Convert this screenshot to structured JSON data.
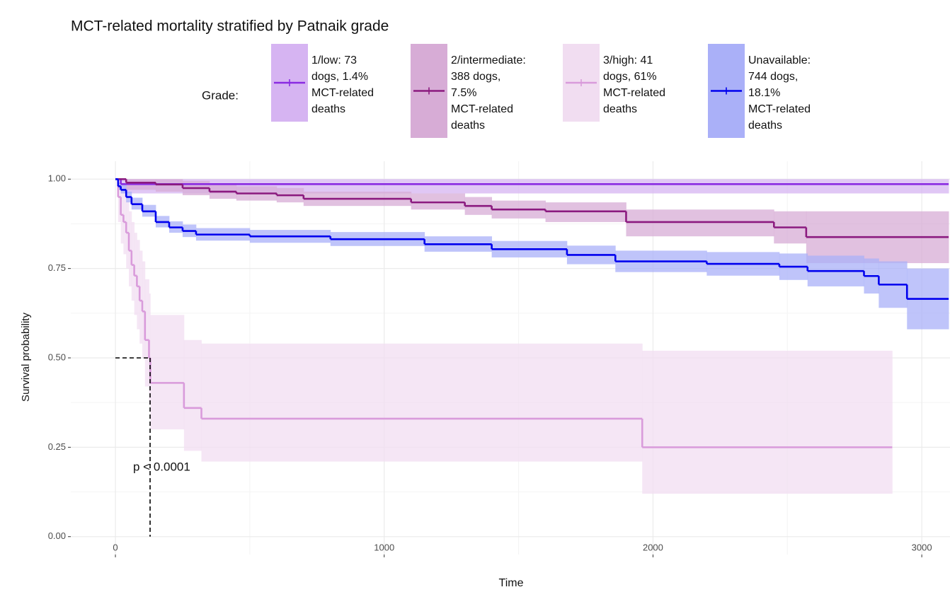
{
  "chart_data": {
    "type": "km",
    "title": "MCT-related mortality stratified by Patnaik grade",
    "legend_title": "Grade:",
    "x_label": "Time",
    "y_label": "Survival probability",
    "annotation": "p < 0.0001",
    "median": {
      "x": 129,
      "y": 0.5
    },
    "xlim": [
      -166,
      3105
    ],
    "xticks": [
      0,
      1000,
      2000,
      3000
    ],
    "ylim": [
      -0.05,
      1.05
    ],
    "yticks": [
      {
        "value": 0,
        "label": "0.00"
      },
      {
        "value": 0.25,
        "label": "0.25"
      },
      {
        "value": 0.5,
        "label": "0.50"
      },
      {
        "value": 0.75,
        "label": "0.75"
      },
      {
        "value": 1,
        "label": "1.00"
      }
    ],
    "grid": true,
    "series": [
      {
        "name": "1/low: 73\ndogs, 1.4%\nMCT-related\ndeaths",
        "color": "#8a2be2",
        "band_color": "#d6b4f2",
        "x": [
          0,
          20
        ],
        "values": [
          1,
          0.986
        ],
        "lower": [
          1,
          0.96
        ],
        "upper": [
          1,
          1.0
        ],
        "end": 3100
      },
      {
        "name": "2/intermediate:\n388 dogs,\n7.5%\nMCT-related\ndeaths",
        "color": "#8b1a7f",
        "band_color": "#d7acd6",
        "x": [
          0,
          40,
          150,
          250,
          350,
          450,
          600,
          700,
          1100,
          1300,
          1400,
          1600,
          1900,
          2450,
          2570
        ],
        "values": [
          1,
          0.99,
          0.985,
          0.975,
          0.965,
          0.96,
          0.955,
          0.945,
          0.935,
          0.925,
          0.915,
          0.91,
          0.88,
          0.865,
          0.838
        ],
        "lower": [
          1,
          0.97,
          0.965,
          0.955,
          0.945,
          0.94,
          0.935,
          0.925,
          0.915,
          0.9,
          0.89,
          0.88,
          0.84,
          0.82,
          0.765
        ],
        "upper": [
          1,
          1,
          1,
          0.995,
          0.985,
          0.98,
          0.975,
          0.965,
          0.96,
          0.95,
          0.94,
          0.935,
          0.915,
          0.91,
          0.91
        ],
        "end": 3100
      },
      {
        "name": "3/high: 41\ndogs, 61%\nMCT-related\ndeaths",
        "color": "#d99bdb",
        "band_color": "#f1ddf1",
        "x": [
          0,
          10,
          20,
          30,
          40,
          50,
          60,
          70,
          80,
          90,
          100,
          110,
          125,
          130,
          255,
          320,
          1960
        ],
        "values": [
          1,
          0.95,
          0.9,
          0.88,
          0.85,
          0.8,
          0.76,
          0.73,
          0.7,
          0.66,
          0.63,
          0.55,
          0.5,
          0.43,
          0.36,
          0.33,
          0.25
        ],
        "lower": [
          1,
          0.88,
          0.82,
          0.79,
          0.75,
          0.7,
          0.66,
          0.62,
          0.58,
          0.54,
          0.5,
          0.42,
          0.37,
          0.3,
          0.24,
          0.21,
          0.12
        ],
        "upper": [
          1,
          1,
          0.98,
          0.96,
          0.94,
          0.91,
          0.88,
          0.85,
          0.83,
          0.8,
          0.77,
          0.72,
          0.68,
          0.62,
          0.55,
          0.54,
          0.52
        ],
        "end": 2890
      },
      {
        "name": "Unavailable:\n744 dogs,\n18.1%\nMCT-related\ndeaths",
        "color": "#0000ee",
        "band_color": "#aab0f8",
        "x": [
          0,
          10,
          20,
          40,
          60,
          100,
          150,
          200,
          250,
          300,
          500,
          800,
          1150,
          1400,
          1680,
          1860,
          2200,
          2470,
          2575,
          2785,
          2840,
          2945
        ],
        "values": [
          1,
          0.98,
          0.97,
          0.95,
          0.93,
          0.91,
          0.88,
          0.865,
          0.855,
          0.845,
          0.84,
          0.832,
          0.818,
          0.804,
          0.788,
          0.77,
          0.763,
          0.755,
          0.743,
          0.729,
          0.705,
          0.665
        ],
        "lower": [
          1,
          0.97,
          0.96,
          0.935,
          0.915,
          0.895,
          0.865,
          0.85,
          0.838,
          0.828,
          0.822,
          0.813,
          0.797,
          0.781,
          0.762,
          0.74,
          0.73,
          0.718,
          0.7,
          0.68,
          0.64,
          0.58
        ],
        "upper": [
          1,
          0.99,
          0.985,
          0.965,
          0.948,
          0.928,
          0.897,
          0.882,
          0.873,
          0.863,
          0.858,
          0.852,
          0.84,
          0.827,
          0.814,
          0.8,
          0.796,
          0.792,
          0.786,
          0.778,
          0.77,
          0.75
        ],
        "end": 3100
      }
    ]
  }
}
